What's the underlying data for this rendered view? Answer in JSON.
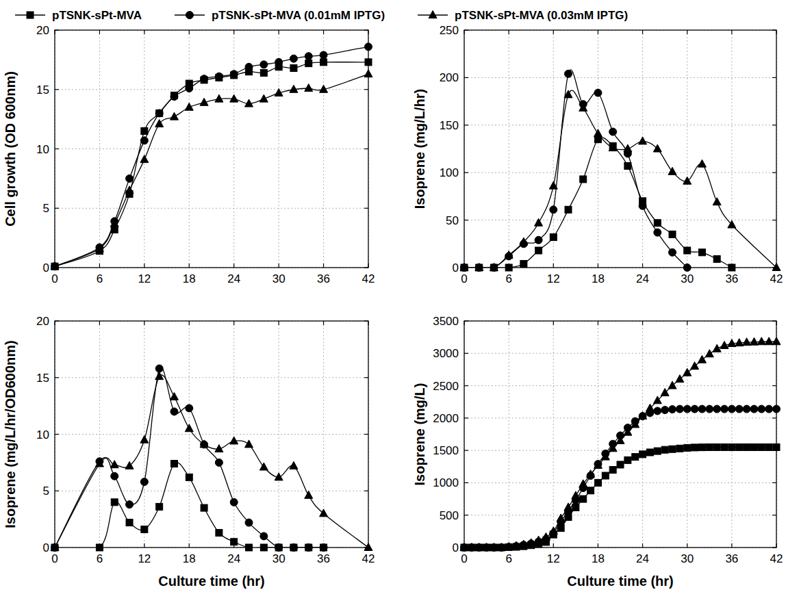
{
  "chart_data": [
    {
      "type": "line",
      "y_label": "Cell growth (OD 600nm)",
      "legend": "top",
      "grid": true,
      "x": [
        0,
        6,
        8,
        10,
        12,
        14,
        16,
        18,
        20,
        22,
        24,
        26,
        28,
        30,
        32,
        34,
        36,
        42
      ],
      "xlim": [
        0,
        42
      ],
      "xticks": [
        0,
        6,
        12,
        18,
        24,
        30,
        36,
        42
      ],
      "ylim": [
        0,
        20
      ],
      "yticks": [
        0,
        5,
        10,
        15,
        20
      ],
      "series": [
        {
          "name": "pTSNK-sPt-MVA",
          "color": "#000000",
          "marker": "square",
          "values": [
            0.1,
            1.4,
            3.2,
            6.2,
            11.5,
            13.0,
            14.5,
            15.5,
            15.8,
            16.0,
            16.2,
            16.5,
            16.4,
            16.9,
            16.8,
            17.2,
            17.3,
            17.3
          ]
        },
        {
          "name": "pTSNK-sPt-MVA (0.01mM IPTG)",
          "color": "#000000",
          "marker": "circle",
          "values": [
            0.1,
            1.7,
            3.9,
            7.5,
            10.7,
            13.0,
            14.4,
            15.1,
            15.9,
            16.1,
            16.3,
            16.9,
            17.1,
            17.3,
            17.6,
            17.8,
            17.9,
            18.6
          ]
        },
        {
          "name": "pTSNK-sPt-MVA (0.03mM IPTG)",
          "color": "#000000",
          "marker": "triangle",
          "values": [
            0.1,
            1.6,
            3.7,
            6.5,
            9.1,
            12.1,
            12.7,
            13.5,
            13.9,
            14.2,
            14.2,
            13.8,
            14.2,
            14.7,
            15.0,
            15.1,
            15.0,
            16.3
          ]
        }
      ]
    },
    {
      "type": "line",
      "y_label": "Isoprene (mg/L/hr)",
      "grid": true,
      "x": [
        0,
        2,
        4,
        6,
        8,
        10,
        12,
        14,
        16,
        18,
        20,
        22,
        24,
        26,
        28,
        30,
        32,
        34,
        36,
        42
      ],
      "xlim": [
        0,
        42
      ],
      "xticks": [
        0,
        6,
        12,
        18,
        24,
        30,
        36,
        42
      ],
      "ylim": [
        0,
        250
      ],
      "yticks": [
        0,
        50,
        100,
        150,
        200,
        250
      ],
      "series": [
        {
          "name": "pTSNK-sPt-MVA",
          "color": "#000000",
          "marker": "square",
          "values": [
            0,
            0,
            0,
            0,
            4,
            18,
            32,
            61,
            93,
            135,
            128,
            107,
            70,
            47,
            35,
            18,
            16,
            9,
            0,
            null
          ]
        },
        {
          "name": "pTSNK-sPt-MVA (0.01mM IPTG)",
          "color": "#000000",
          "marker": "circle",
          "values": [
            0,
            0,
            0,
            12,
            25,
            29,
            61,
            204,
            172,
            184,
            143,
            120,
            65,
            37,
            16,
            0,
            null,
            null,
            null,
            null
          ]
        },
        {
          "name": "pTSNK-sPt-MVA (0.03mM IPTG)",
          "color": "#000000",
          "marker": "triangle",
          "values": [
            0,
            0,
            0,
            13,
            27,
            47,
            86,
            182,
            168,
            141,
            126,
            125,
            133,
            125,
            101,
            91,
            109,
            69,
            45,
            0
          ]
        }
      ]
    },
    {
      "type": "line",
      "y_label": "Isoprene (mg/L/hr/OD600nm)",
      "x_label": "Culture time (hr)",
      "grid": true,
      "x": [
        0,
        6,
        8,
        10,
        12,
        14,
        16,
        18,
        20,
        22,
        24,
        26,
        28,
        30,
        32,
        34,
        36,
        42
      ],
      "xlim": [
        0,
        42
      ],
      "xticks": [
        0,
        6,
        12,
        18,
        24,
        30,
        36,
        42
      ],
      "ylim": [
        0,
        20
      ],
      "yticks": [
        0,
        5,
        10,
        15,
        20
      ],
      "series": [
        {
          "name": "pTSNK-sPt-MVA",
          "color": "#000000",
          "marker": "square",
          "values": [
            0,
            0,
            4.0,
            2.2,
            1.6,
            3.6,
            7.4,
            6.2,
            3.5,
            1.3,
            0.5,
            0,
            0,
            0,
            0,
            0,
            0,
            null
          ]
        },
        {
          "name": "pTSNK-sPt-MVA (0.01mM IPTG)",
          "color": "#000000",
          "marker": "circle",
          "values": [
            0,
            7.6,
            6.3,
            3.8,
            5.8,
            15.8,
            12.0,
            12.3,
            9.1,
            7.5,
            4.0,
            2.2,
            1.0,
            0,
            0,
            0,
            0,
            null
          ]
        },
        {
          "name": "pTSNK-sPt-MVA (0.03mM IPTG)",
          "color": "#000000",
          "marker": "triangle",
          "values": [
            0,
            7.4,
            7.3,
            7.2,
            9.5,
            15.1,
            13.3,
            10.5,
            9.1,
            8.7,
            9.4,
            9.1,
            7.1,
            6.2,
            7.2,
            4.6,
            3.0,
            0
          ]
        }
      ]
    },
    {
      "type": "line",
      "y_label": "Isoprene (mg/L)",
      "x_label": "Culture time (hr)",
      "grid": true,
      "x": [
        0,
        1,
        2,
        3,
        4,
        5,
        6,
        7,
        8,
        9,
        10,
        11,
        12,
        13,
        14,
        15,
        16,
        17,
        18,
        19,
        20,
        21,
        22,
        23,
        24,
        25,
        26,
        27,
        28,
        29,
        30,
        31,
        32,
        33,
        34,
        35,
        36,
        37,
        38,
        39,
        40,
        41,
        42
      ],
      "xlim": [
        0,
        42
      ],
      "xticks": [
        0,
        6,
        12,
        18,
        24,
        30,
        36,
        42
      ],
      "ylim": [
        0,
        3500
      ],
      "yticks": [
        0,
        500,
        1000,
        1500,
        2000,
        2500,
        3000,
        3500
      ],
      "series": [
        {
          "name": "pTSNK-sPt-MVA",
          "color": "#000000",
          "marker": "square",
          "values": [
            0,
            0,
            0,
            0,
            0,
            0,
            5,
            10,
            20,
            35,
            55,
            85,
            200,
            300,
            470,
            620,
            750,
            880,
            1000,
            1110,
            1200,
            1280,
            1350,
            1400,
            1440,
            1470,
            1490,
            1510,
            1520,
            1530,
            1540,
            1545,
            1548,
            1550,
            1550,
            1550,
            1550,
            1550,
            1550,
            1550,
            1550,
            1550,
            1550
          ]
        },
        {
          "name": "pTSNK-sPt-MVA (0.01mM IPTG)",
          "color": "#000000",
          "marker": "circle",
          "values": [
            0,
            0,
            0,
            0,
            0,
            0,
            10,
            20,
            40,
            60,
            90,
            130,
            220,
            400,
            560,
            730,
            920,
            1110,
            1290,
            1450,
            1600,
            1730,
            1850,
            1950,
            2030,
            2080,
            2110,
            2125,
            2135,
            2140,
            2140,
            2140,
            2140,
            2140,
            2140,
            2140,
            2140,
            2140,
            2140,
            2140,
            2140,
            2140,
            2140
          ]
        },
        {
          "name": "pTSNK-sPt-MVA (0.03mM IPTG)",
          "color": "#000000",
          "marker": "triangle",
          "values": [
            0,
            0,
            0,
            0,
            0,
            0,
            10,
            25,
            45,
            70,
            110,
            160,
            250,
            450,
            620,
            800,
            980,
            1130,
            1270,
            1400,
            1530,
            1650,
            1780,
            1900,
            2030,
            2150,
            2270,
            2390,
            2500,
            2600,
            2700,
            2800,
            2900,
            2990,
            3070,
            3120,
            3150,
            3160,
            3170,
            3175,
            3180,
            3180,
            3180
          ]
        }
      ]
    }
  ]
}
